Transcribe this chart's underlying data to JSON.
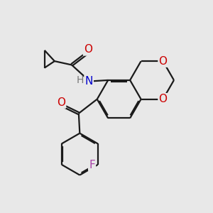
{
  "bg_color": "#e8e8e8",
  "bond_color": "#1a1a1a",
  "oxygen_color": "#cc0000",
  "nitrogen_color": "#0000cc",
  "fluorine_color": "#aa44aa",
  "h_color": "#777777",
  "lw": 1.6,
  "dbo": 0.055,
  "xlim": [
    0,
    10
  ],
  "ylim": [
    0,
    10
  ]
}
